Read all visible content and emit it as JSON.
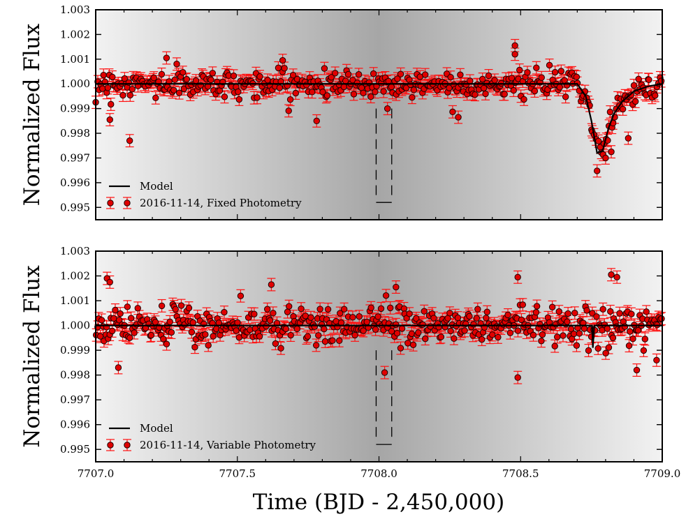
{
  "chart_data": [
    {
      "type": "scatter",
      "panel": "top",
      "ylabel": "Normalized Flux",
      "xlim": [
        7707.0,
        7709.0
      ],
      "ylim": [
        0.9945,
        1.003
      ],
      "yticks": [
        "1.003",
        "1.002",
        "1.001",
        "1.000",
        "0.999",
        "0.998",
        "0.997",
        "0.996",
        "0.995"
      ],
      "grid": false,
      "legend": {
        "placement": "bottom-left",
        "entries": [
          {
            "label": "Model",
            "kind": "line"
          },
          {
            "label": "2016-11-14, Fixed Photometry",
            "kind": "errorbar-marker"
          }
        ]
      },
      "shaded_band": {
        "from": 7707.0,
        "to": 7709.0,
        "darkest_at": 7708.0
      },
      "transit_window": {
        "ingress": 7707.99,
        "egress": 7708.045,
        "floor": 0.9952
      },
      "model": {
        "baseline": 1.0,
        "x": [
          7707.0,
          7708.7,
          7708.73,
          7708.75,
          7708.77,
          7708.79,
          7708.81,
          7708.83,
          7708.86,
          7708.9,
          7708.95,
          7709.0
        ],
        "y": [
          1.0,
          1.0,
          0.9995,
          0.9985,
          0.9972,
          0.9973,
          0.9982,
          0.9988,
          0.9993,
          0.9997,
          0.9999,
          1.0
        ]
      },
      "errorbar_size": 0.00025,
      "n_points": 380,
      "scatter_sigma": 0.00045,
      "outliers": [
        {
          "x": 7707.12,
          "y": 0.9977
        },
        {
          "x": 7707.05,
          "y": 0.99855
        },
        {
          "x": 7707.78,
          "y": 0.9985
        },
        {
          "x": 7708.03,
          "y": 0.999
        },
        {
          "x": 7708.28,
          "y": 0.99865
        },
        {
          "x": 7708.48,
          "y": 1.00155
        },
        {
          "x": 7708.48,
          "y": 1.0012
        },
        {
          "x": 7708.8,
          "y": 0.997
        },
        {
          "x": 7708.82,
          "y": 0.99725
        },
        {
          "x": 7708.88,
          "y": 0.9978
        },
        {
          "x": 7707.25,
          "y": 1.00105
        },
        {
          "x": 7707.66,
          "y": 1.00095
        }
      ]
    },
    {
      "type": "scatter",
      "panel": "bottom",
      "ylabel": "Normalized Flux",
      "xlabel": "Time (BJD - 2,450,000)",
      "xlim": [
        7707.0,
        7709.0
      ],
      "ylim": [
        0.9945,
        1.003
      ],
      "yticks": [
        "1.003",
        "1.002",
        "1.001",
        "1.000",
        "0.999",
        "0.998",
        "0.997",
        "0.996",
        "0.995"
      ],
      "xticks": [
        "7707.0",
        "7707.5",
        "7708.0",
        "7708.5",
        "7709.0"
      ],
      "xtick_values": [
        7707.0,
        7707.5,
        7708.0,
        7708.5,
        7709.0
      ],
      "grid": false,
      "legend": {
        "placement": "bottom-left",
        "entries": [
          {
            "label": "Model",
            "kind": "line"
          },
          {
            "label": "2016-11-14, Variable Photometry",
            "kind": "errorbar-marker"
          }
        ]
      },
      "shaded_band": {
        "from": 7707.0,
        "to": 7709.0,
        "darkest_at": 7708.0
      },
      "transit_window": {
        "ingress": 7707.99,
        "egress": 7708.045,
        "floor": 0.9952
      },
      "model": {
        "baseline": 1.0,
        "x": [
          7707.0,
          7708.754,
          7708.755,
          7708.757,
          7708.758,
          7709.0
        ],
        "y": [
          1.0,
          1.0,
          0.9991,
          0.9991,
          1.0,
          1.0
        ]
      },
      "errorbar_size": 0.00025,
      "n_points": 420,
      "scatter_sigma": 0.00065,
      "outliers": [
        {
          "x": 7707.04,
          "y": 1.0019
        },
        {
          "x": 7707.05,
          "y": 1.00175
        },
        {
          "x": 7707.08,
          "y": 0.9983
        },
        {
          "x": 7707.62,
          "y": 1.00165
        },
        {
          "x": 7708.06,
          "y": 1.00155
        },
        {
          "x": 7708.02,
          "y": 0.9981
        },
        {
          "x": 7708.49,
          "y": 1.00195
        },
        {
          "x": 7708.49,
          "y": 0.9979
        },
        {
          "x": 7708.82,
          "y": 1.00205
        },
        {
          "x": 7708.84,
          "y": 1.00195
        },
        {
          "x": 7708.91,
          "y": 0.9982
        },
        {
          "x": 7708.98,
          "y": 0.9986
        }
      ]
    }
  ],
  "colors": {
    "marker_fill": "#e00000",
    "marker_edge": "#1a0000",
    "errorbar": "#ff1010",
    "model_line": "#000000",
    "band_light": "#f2f2f2",
    "band_dark": "#a6a6a6"
  }
}
